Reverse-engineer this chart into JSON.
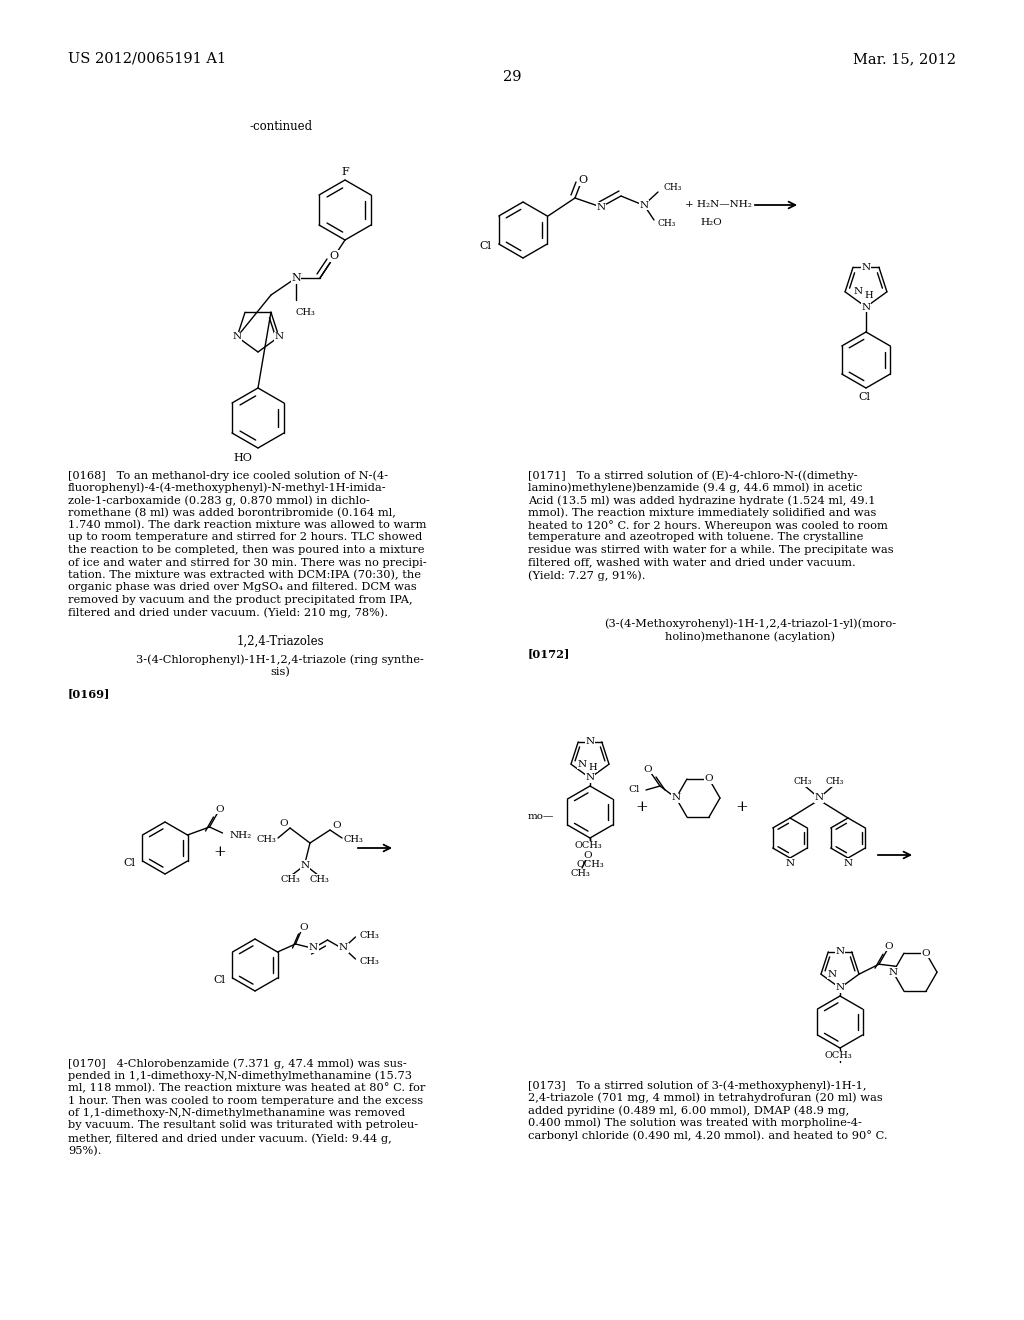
{
  "page_number": "29",
  "header_left": "US 2012/0065191 A1",
  "header_right": "Mar. 15, 2012",
  "background_color": "#ffffff",
  "text_color": "#000000",
  "fs_header": 10.5,
  "fs_body": 8.2,
  "continued_text": "-continued",
  "para_0168_lines": [
    "[0168]   To an methanol-dry ice cooled solution of N-(4-",
    "fluorophenyl)-4-(4-methoxyphenyl)-N-methyl-1H-imida-",
    "zole-1-carboxamide (0.283 g, 0.870 mmol) in dichlo-",
    "romethane (8 ml) was added borontribromide (0.164 ml,",
    "1.740 mmol). The dark reaction mixture was allowed to warm",
    "up to room temperature and stirred for 2 hours. TLC showed",
    "the reaction to be completed, then was poured into a mixture",
    "of ice and water and stirred for 30 min. There was no precipi-",
    "tation. The mixture was extracted with DCM:IPA (70:30), the",
    "organic phase was dried over MgSO₄ and filtered. DCM was",
    "removed by vacuum and the product precipitated from IPA,",
    "filtered and dried under vacuum. (Yield: 210 mg, 78%)."
  ],
  "para_0170_lines": [
    "[0170]   4-Chlorobenzamide (7.371 g, 47.4 mmol) was sus-",
    "pended in 1,1-dimethoxy-N,N-dimethylmethanamine (15.73",
    "ml, 118 mmol). The reaction mixture was heated at 80° C. for",
    "1 hour. Then was cooled to room temperature and the excess",
    "of 1,1-dimethoxy-N,N-dimethylmethanamine was removed",
    "by vacuum. The resultant solid was triturated with petroleu-",
    "mether, filtered and dried under vacuum. (Yield: 9.44 g,",
    "95%)."
  ],
  "para_0171_lines": [
    "[0171]   To a stirred solution of (E)-4-chloro-N-((dimethy-",
    "lamino)methylene)benzamide (9.4 g, 44.6 mmol) in acetic",
    "Acid (13.5 ml) was added hydrazine hydrate (1.524 ml, 49.1",
    "mmol). The reaction mixture immediately solidified and was",
    "heated to 120° C. for 2 hours. Whereupon was cooled to room",
    "temperature and azeotroped with toluene. The crystalline",
    "residue was stirred with water for a while. The precipitate was",
    "filtered off, washed with water and dried under vacuum.",
    "(Yield: 7.27 g, 91%)."
  ],
  "para_0173_lines": [
    "[0173]   To a stirred solution of 3-(4-methoxyphenyl)-1H-1,",
    "2,4-triazole (701 mg, 4 mmol) in tetrahydrofuran (20 ml) was",
    "added pyridine (0.489 ml, 6.00 mmol), DMAP (48.9 mg,",
    "0.400 mmol) The solution was treated with morpholine-4-",
    "carbonyl chloride (0.490 ml, 4.20 mmol). and heated to 90° C."
  ],
  "section_triazoles": "1,2,4-Triazoles",
  "section_ring_line1": "3-(4-Chlorophenyl)-1H-1,2,4-triazole (ring synthe-",
  "section_ring_line2": "sis)",
  "section_acyl_line1": "(3-(4-Methoxyrohenyl)-1H-1,2,4-triazol-1-yl)(moro-",
  "section_acyl_line2": "holino)methanone (acylation)",
  "para_0169": "[0169]",
  "para_0172": "[0172]"
}
